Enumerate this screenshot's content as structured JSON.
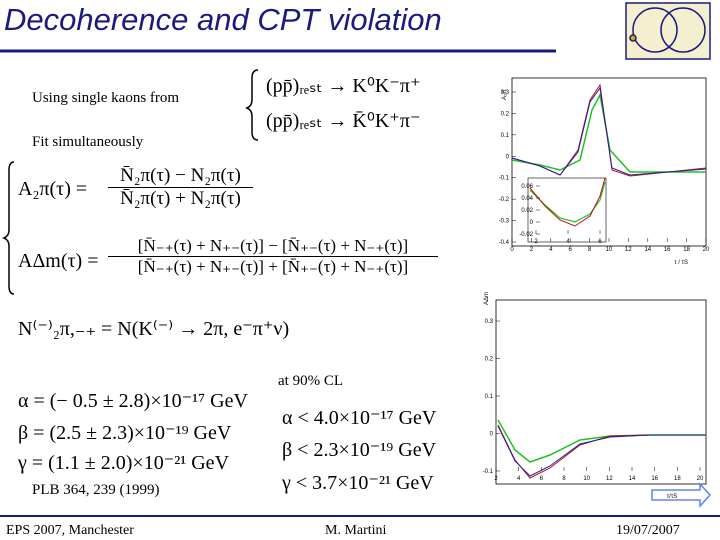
{
  "header": {
    "title": "Decoherence and CPT violation"
  },
  "intro": {
    "source": "Using single kaons  from",
    "fit": "Fit simultaneously"
  },
  "reactions": [
    "(pp̄)ᵣₑₛₜ → K⁰K⁻π⁺",
    "(pp̄)ᵣₑₛₜ → K̄⁰K⁺π⁻"
  ],
  "asymmetries": [
    {
      "lhs": "A₂π(τ) =",
      "numerator": "N̄₂π(τ) − N₂π(τ)",
      "denominator": "N̄₂π(τ) + N₂π(τ)"
    },
    {
      "lhs": "AΔm(τ) =",
      "numerator": "[N̄₋₊(τ) + N₊₋(τ)] − [N̄₊₋(τ) + N₋₊(τ)]",
      "denominator": "[N̄₋₊(τ) + N₊₋(τ)] + [N̄₊₋(τ) + N₋₊(τ)]"
    }
  ],
  "definition": "N⁽⁻⁾₂π,₋₊ = N(K⁽⁻⁾ → 2π, e⁻π⁺ν)",
  "results": {
    "fits": [
      "α = (− 0.5 ± 2.8)×10⁻¹⁷ GeV",
      "β = (2.5 ± 2.3)×10⁻¹⁹ GeV",
      "γ = (1.1 ± 2.0)×10⁻²¹ GeV"
    ],
    "note": "at 90% CL",
    "limits": [
      "α < 4.0×10⁻¹⁷ GeV",
      "β < 2.3×10⁻¹⁹ GeV",
      "γ < 3.7×10⁻²¹ GeV"
    ]
  },
  "reference": "PLB 364, 239 (1999)",
  "plots": {
    "top": {
      "ylabel": "A₂π",
      "yticks": [
        0.3,
        0.2,
        0.1,
        0,
        -0.1,
        -0.2,
        -0.3,
        -0.4
      ],
      "xticks": [
        0,
        2,
        4,
        6,
        8,
        10,
        12,
        14,
        16,
        18,
        20
      ],
      "xlabel": "τ / τS",
      "inset": {
        "yticks": [
          0.06,
          0.04,
          0.02,
          0,
          -0.02
        ],
        "xticks": [
          2,
          4,
          6
        ]
      }
    },
    "bottom": {
      "ylabel": "AΔm",
      "yticks": [
        0.3,
        0.2,
        0.1,
        0,
        -0.1
      ],
      "xticks": [
        2,
        4,
        6,
        8,
        10,
        12,
        14,
        16,
        18,
        20
      ],
      "xlabel": "τ/τS"
    }
  },
  "footer": {
    "event": "EPS 2007, Manchester",
    "author": "M. Martini",
    "date": "19/07/2007"
  }
}
